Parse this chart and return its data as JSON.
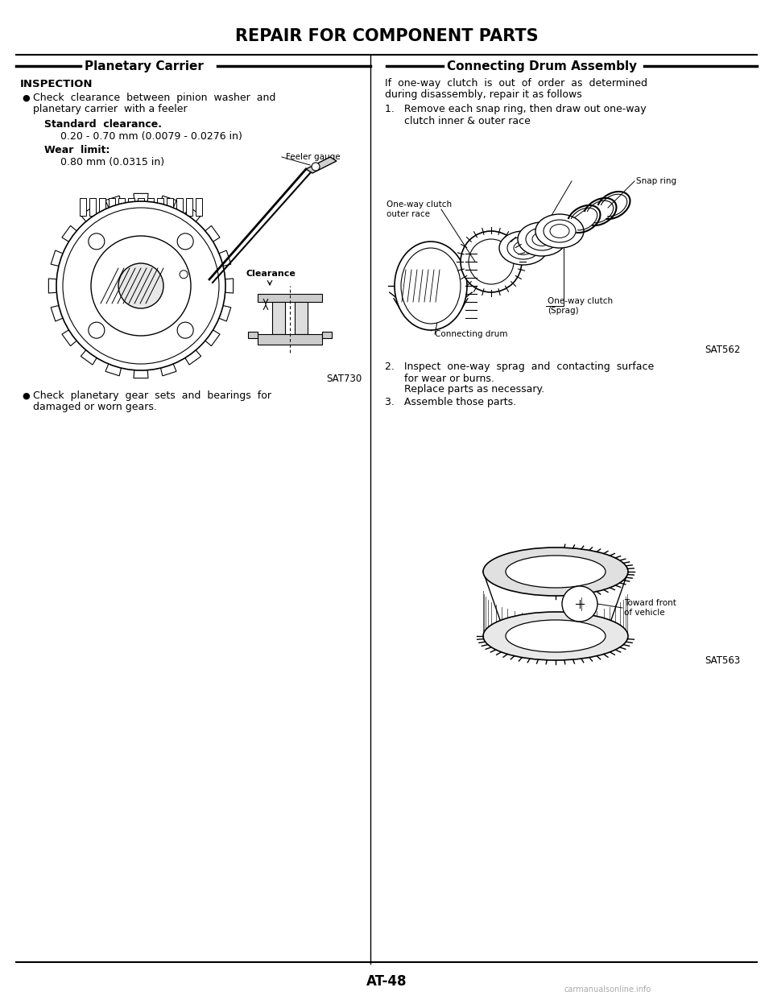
{
  "title": "REPAIR FOR COMPONENT PARTS",
  "left_section_title": "Planetary Carrier",
  "right_section_title": "Connecting Drum Assembly",
  "bg_color": "#ffffff",
  "title_fontsize": 15,
  "section_title_fontsize": 11,
  "body_fontsize": 9.0,
  "page_number": "AT-48",
  "left_content": {
    "inspection_header": "INSPECTION",
    "bullet1_line1": "Check  clearance  between  pinion  washer  and",
    "bullet1_line2": "planetary carrier  with a feeler",
    "std_clearance_label": "Standard  clearance.",
    "std_clearance_value": "0.20 - 0.70 mm (0.0079 - 0.0276 in)",
    "wear_limit_label": "Wear  limit:",
    "wear_limit_value": "0.80 mm (0.0315 in)",
    "feeler_gauge_label": "Feeler gauge",
    "clearance_label": "Clearance",
    "sat_number1": "SAT730",
    "bullet2_line1": "Check  planetary  gear  sets  and  bearings  for",
    "bullet2_line2": "damaged or worn gears."
  },
  "right_content": {
    "intro_line1": "If  one-way  clutch  is  out  of  order  as  determined",
    "intro_line2": "during disassembly, repair it as follows",
    "step1_line1": "1.   Remove each snap ring, then draw out one-way",
    "step1_line2": "      clutch inner & outer race",
    "snap_ring_label": "Snap ring",
    "one_way_clutch_outer_label": "One-way clutch\nouter race",
    "one_way_clutch_sprag_label": "One-way clutch\n(Sprag)",
    "connecting_drum_label": "Connecting drum",
    "sat_number2": "SAT562",
    "step2_line1": "2.   Inspect  one-way  sprag  and  contacting  surface",
    "step2_line2": "      for wear or burns.",
    "step2_line3": "      Replace parts as necessary.",
    "step3": "3.   Assemble those parts.",
    "toward_front_label": "Toward front\nof vehicle",
    "sat_number3": "SAT563"
  }
}
